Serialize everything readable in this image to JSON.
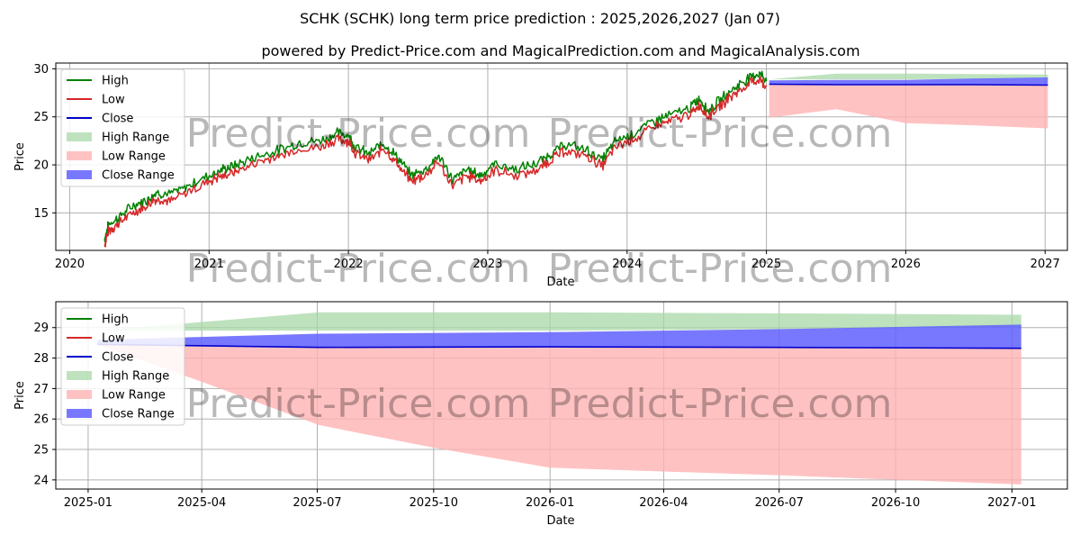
{
  "title": "SCHK (SCHK) long term price prediction : 2025,2026,2027 (Jan 07)",
  "subtitle": "powered by Predict-Price.com and MagicalPrediction.com and MagicalAnalysis.com",
  "watermark": "Predict-Price.com",
  "colors": {
    "high": "#008000",
    "low": "#d62728",
    "close": "#0000cc",
    "high_range": "#a8d8a8",
    "low_range": "#ffb3b3",
    "close_range": "#6060ff",
    "grid": "#b0b0b0"
  },
  "chart_data": [
    {
      "type": "line",
      "name": "history-and-prediction",
      "xlabel": "Date",
      "ylabel": "Price",
      "xlim": [
        2019.9,
        2027.16
      ],
      "ylim": [
        11.1,
        30.6
      ],
      "x_ticks": [
        2020,
        2021,
        2022,
        2023,
        2024,
        2025,
        2026,
        2027
      ],
      "x_tick_labels": [
        "2020",
        "2021",
        "2022",
        "2023",
        "2024",
        "2025",
        "2026",
        "2027"
      ],
      "y_ticks": [
        15,
        20,
        25,
        30
      ],
      "y_tick_labels": [
        "15",
        "20",
        "25",
        "30"
      ],
      "grid": true,
      "legend_position": "top-left",
      "legend": [
        "High",
        "Low",
        "Close",
        "High Range",
        "Low Range",
        "Close Range"
      ],
      "history_anchors": [
        [
          2020.25,
          12.0
        ],
        [
          2020.28,
          13.5
        ],
        [
          2020.35,
          14.2
        ],
        [
          2020.45,
          15.4
        ],
        [
          2020.55,
          16.0
        ],
        [
          2020.62,
          16.8
        ],
        [
          2020.72,
          16.6
        ],
        [
          2020.85,
          17.5
        ],
        [
          2021.0,
          18.6
        ],
        [
          2021.1,
          19.2
        ],
        [
          2021.2,
          19.7
        ],
        [
          2021.35,
          20.6
        ],
        [
          2021.5,
          21.2
        ],
        [
          2021.65,
          22.0
        ],
        [
          2021.8,
          22.2
        ],
        [
          2021.92,
          23.0
        ],
        [
          2022.0,
          22.8
        ],
        [
          2022.05,
          21.5
        ],
        [
          2022.15,
          20.8
        ],
        [
          2022.25,
          22.0
        ],
        [
          2022.35,
          20.5
        ],
        [
          2022.45,
          18.6
        ],
        [
          2022.55,
          19.2
        ],
        [
          2022.65,
          20.6
        ],
        [
          2022.75,
          18.1
        ],
        [
          2022.85,
          19.2
        ],
        [
          2022.95,
          18.6
        ],
        [
          2023.05,
          19.8
        ],
        [
          2023.2,
          19.2
        ],
        [
          2023.35,
          19.8
        ],
        [
          2023.45,
          20.8
        ],
        [
          2023.55,
          21.8
        ],
        [
          2023.7,
          21.3
        ],
        [
          2023.82,
          20.2
        ],
        [
          2023.92,
          22.2
        ],
        [
          2024.05,
          23.0
        ],
        [
          2024.2,
          24.3
        ],
        [
          2024.3,
          24.8
        ],
        [
          2024.45,
          25.6
        ],
        [
          2024.52,
          26.6
        ],
        [
          2024.58,
          25.3
        ],
        [
          2024.68,
          26.6
        ],
        [
          2024.78,
          27.8
        ],
        [
          2024.88,
          28.8
        ],
        [
          2024.95,
          29.2
        ],
        [
          2025.0,
          28.5
        ]
      ],
      "forecast_x": [
        2025.02,
        2025.5,
        2026.0,
        2026.5,
        2027.02
      ],
      "forecast_close": [
        28.4,
        28.35,
        28.35,
        28.35,
        28.3
      ],
      "forecast_high_range": [
        [
          28.9,
          28.9
        ],
        [
          28.9,
          29.5
        ],
        [
          28.9,
          29.5
        ],
        [
          28.95,
          29.45
        ],
        [
          29.0,
          29.4
        ]
      ],
      "forecast_low_range": [
        [
          24.9,
          28.4
        ],
        [
          25.8,
          28.35
        ],
        [
          24.35,
          28.35
        ],
        [
          24.1,
          28.35
        ],
        [
          23.8,
          28.3
        ]
      ],
      "forecast_close_range": [
        [
          28.4,
          28.8
        ],
        [
          28.35,
          28.85
        ],
        [
          28.35,
          28.85
        ],
        [
          28.35,
          29.0
        ],
        [
          28.3,
          29.1
        ]
      ]
    },
    {
      "type": "line",
      "name": "prediction-detail",
      "xlabel": "Date",
      "ylabel": "Price",
      "xlim": [
        2024.93,
        2027.12
      ],
      "ylim": [
        23.7,
        29.85
      ],
      "x_ticks": [
        2025.0,
        2025.246,
        2025.496,
        2025.748,
        2026.0,
        2026.246,
        2026.496,
        2026.748,
        2027.0
      ],
      "x_tick_labels": [
        "2025-01",
        "2025-04",
        "2025-07",
        "2025-10",
        "2026-01",
        "2026-04",
        "2026-07",
        "2026-10",
        "2027-01"
      ],
      "y_ticks": [
        24,
        25,
        26,
        27,
        28,
        29
      ],
      "y_tick_labels": [
        "24",
        "25",
        "26",
        "27",
        "28",
        "29"
      ],
      "grid": true,
      "legend_position": "top-left",
      "legend": [
        "High",
        "Low",
        "Close",
        "High Range",
        "Low Range",
        "Close Range"
      ],
      "close_x": [
        2025.02,
        2025.5,
        2026.0,
        2026.5,
        2027.02
      ],
      "close_y": [
        28.45,
        28.35,
        28.37,
        28.35,
        28.32
      ],
      "high_range_x": [
        2025.02,
        2025.5,
        2026.0,
        2026.5,
        2027.02
      ],
      "high_range_low": [
        28.9,
        28.9,
        28.9,
        28.95,
        29.0
      ],
      "high_range_high": [
        28.9,
        29.5,
        29.5,
        29.47,
        29.42
      ],
      "low_range_x": [
        2025.02,
        2025.25,
        2025.5,
        2025.75,
        2026.0,
        2026.5,
        2027.02
      ],
      "low_range_low": [
        28.45,
        27.2,
        25.8,
        25.05,
        24.4,
        24.15,
        23.85
      ],
      "low_range_high": [
        28.45,
        28.4,
        28.35,
        28.35,
        28.37,
        28.35,
        28.32
      ],
      "close_range_x": [
        2025.02,
        2025.5,
        2026.0,
        2026.5,
        2027.02
      ],
      "close_range_low": [
        28.45,
        28.35,
        28.37,
        28.35,
        28.32
      ],
      "close_range_high": [
        28.6,
        28.8,
        28.85,
        28.95,
        29.1
      ]
    }
  ]
}
